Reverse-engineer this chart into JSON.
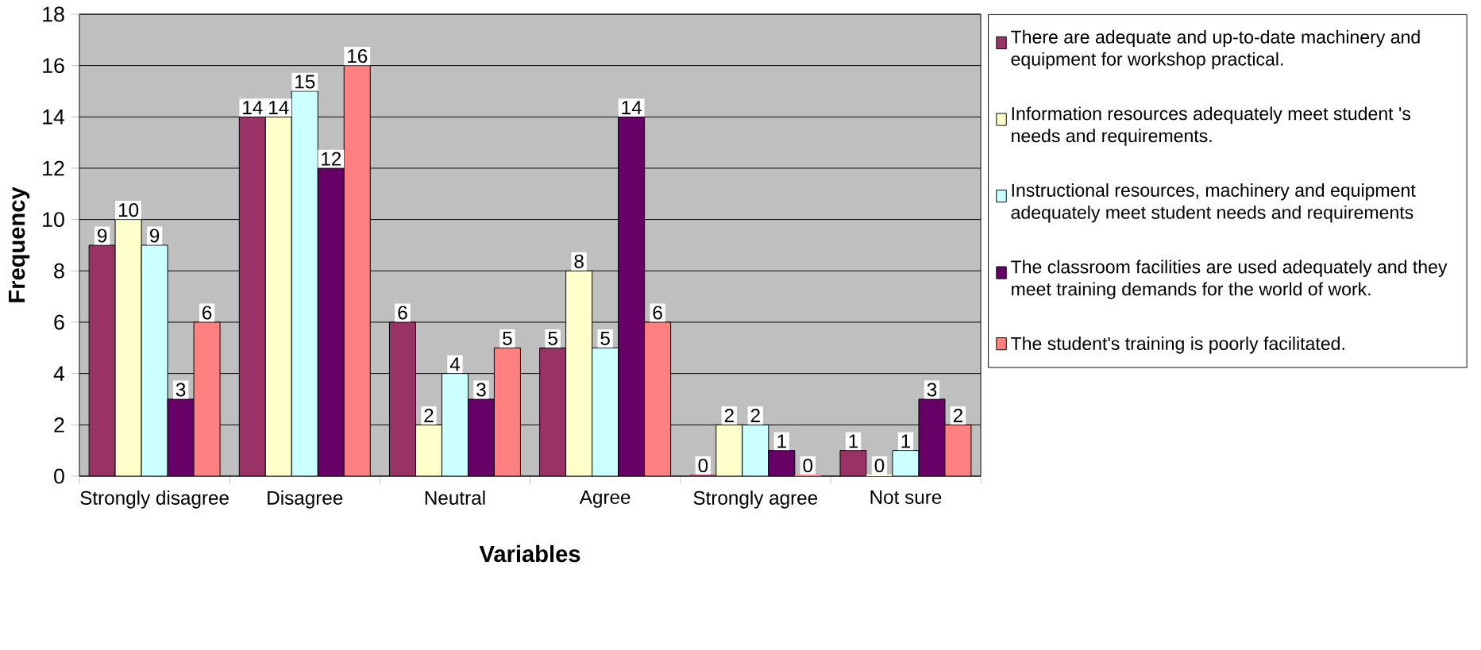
{
  "chart_data": {
    "type": "bar",
    "xlabel": "Variables",
    "ylabel": "Frequency",
    "categories": [
      "Strongly disagree",
      "Disagree",
      "Neutral",
      "Agree",
      "Strongly agree",
      "Not sure"
    ],
    "series": [
      {
        "name": "There are adequate and up-to-date machinery and equipment for workshop practical.",
        "color": "#993366",
        "values": [
          9,
          14,
          6,
          5,
          0,
          1
        ]
      },
      {
        "name": "Information resources adequately meet student 's needs and requirements.",
        "color": "#ffffcc",
        "values": [
          10,
          14,
          2,
          8,
          2,
          0
        ]
      },
      {
        "name": "Instructional resources, machinery and equipment adequately meet student needs and requirements",
        "color": "#ccffff",
        "values": [
          9,
          15,
          4,
          5,
          2,
          1
        ]
      },
      {
        "name": "The classroom facilities are used adequately and they meet training demands for the world of work.",
        "color": "#660066",
        "values": [
          3,
          12,
          3,
          14,
          1,
          3
        ]
      },
      {
        "name": "The student's training is poorly facilitated.",
        "color": "#ff8080",
        "values": [
          6,
          16,
          5,
          6,
          0,
          2
        ]
      }
    ],
    "ylim": [
      0,
      18
    ],
    "yticks": [
      0,
      2,
      4,
      6,
      8,
      10,
      12,
      14,
      16,
      18
    ],
    "grid": "y",
    "legend": "right",
    "data_labels": true
  }
}
